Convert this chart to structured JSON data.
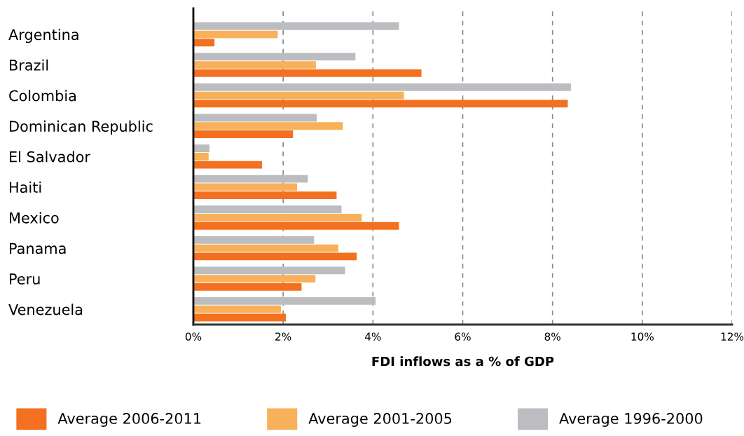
{
  "chart_data": {
    "type": "bar",
    "orientation": "horizontal",
    "xlabel": "FDI inflows as a % of GDP",
    "categories": [
      "Argentina",
      "Brazil",
      "Colombia",
      "Dominican Republic",
      "El Salvador",
      "Haiti",
      "Mexico",
      "Panama",
      "Peru",
      "Venezuela"
    ],
    "series": [
      {
        "name": "Average 1996-2000",
        "color": "#bcbdc0",
        "values": [
          4.58,
          3.61,
          8.41,
          2.75,
          0.36,
          2.55,
          3.3,
          2.69,
          3.38,
          4.06
        ]
      },
      {
        "name": "Average 2001-2005",
        "color": "#f9b05a",
        "values": [
          1.88,
          2.73,
          4.69,
          3.33,
          0.34,
          2.31,
          3.75,
          3.23,
          2.72,
          1.95
        ]
      },
      {
        "name": "Average 2006-2011",
        "color": "#f37021",
        "values": [
          0.47,
          5.08,
          8.34,
          2.22,
          1.53,
          3.19,
          4.58,
          3.64,
          2.41,
          2.06
        ]
      }
    ],
    "xlim": [
      0,
      12
    ],
    "xticks": [
      {
        "value": 0,
        "label": "0%"
      },
      {
        "value": 2,
        "label": "2%"
      },
      {
        "value": 4,
        "label": "4%"
      },
      {
        "value": 6,
        "label": "6%"
      },
      {
        "value": 8,
        "label": "8%"
      },
      {
        "value": 10,
        "label": "10%"
      },
      {
        "value": 12,
        "label": "12%"
      }
    ],
    "grid": "x",
    "legend": "bottom"
  }
}
